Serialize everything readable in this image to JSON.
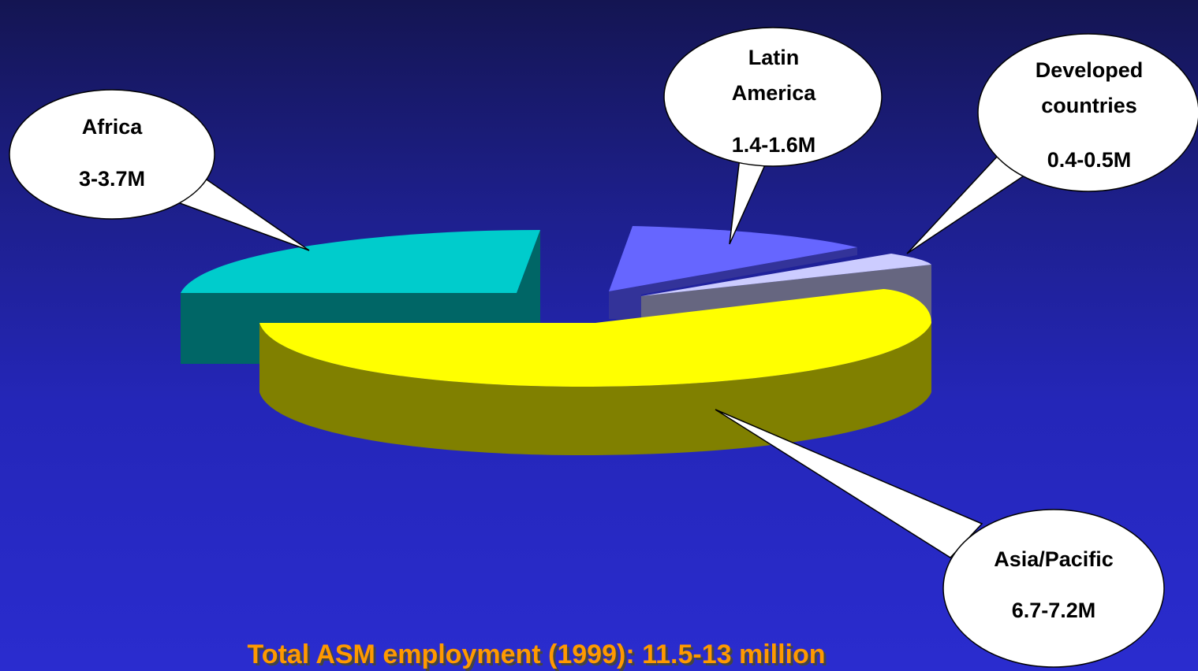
{
  "chart_data": {
    "type": "pie",
    "title": "",
    "style": "3d-exploded",
    "slices": [
      {
        "label": "Africa",
        "value_text": "3-3.7M",
        "value": 3.35,
        "color": "#00cccc",
        "side_color": "#006666"
      },
      {
        "label": "Latin America",
        "value_text": "1.4-1.6M",
        "value": 1.5,
        "color": "#6666ff",
        "side_color": "#333399"
      },
      {
        "label": "Developed countries",
        "value_text": "0.4-0.5M",
        "value": 0.45,
        "color": "#ccccff",
        "side_color": "#666680"
      },
      {
        "label": "Asia/Pacific",
        "value_text": "6.7-7.2M",
        "value": 6.95,
        "color": "#ffff00",
        "side_color": "#808000"
      }
    ]
  },
  "callouts": {
    "africa": {
      "line1": "Africa",
      "line2": "",
      "value": "3-3.7M"
    },
    "latin_america": {
      "line1": "Latin",
      "line2": "America",
      "value": "1.4-1.6M"
    },
    "developed": {
      "line1": "Developed",
      "line2": "countries",
      "value": "0.4-0.5M"
    },
    "asia": {
      "line1": "Asia/Pacific",
      "line2": "",
      "value": "6.7-7.2M"
    }
  },
  "footer": {
    "text": "Total ASM employment (1999): 11.5-13 million",
    "color": "#ff9900"
  }
}
